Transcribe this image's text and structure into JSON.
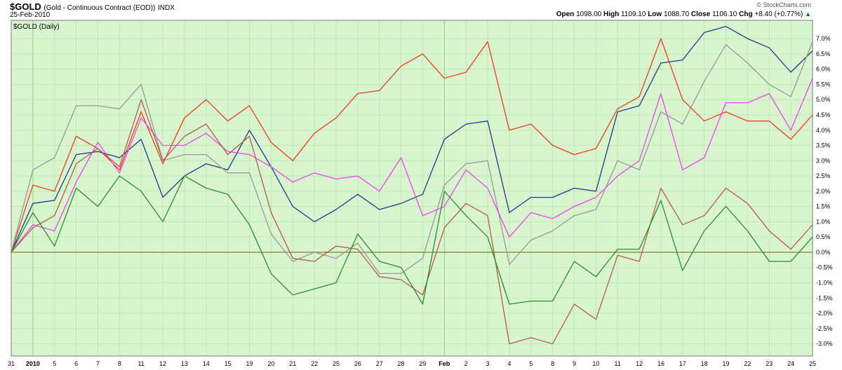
{
  "header": {
    "symbol": "$GOLD",
    "description": "(Gold - Continuous Contract (EOD))",
    "exchange": "INDX",
    "date": "25-Feb-2010",
    "brand": "© StockCharts.com",
    "open_label": "Open",
    "open": "1098.00",
    "high_label": "High",
    "high": "1109.10",
    "low_label": "Low",
    "low": "1088.70",
    "close_label": "Close",
    "close": "1106.10",
    "chg_label": "Chg",
    "chg": "+8.40 (+0.77%)",
    "chg_arrow_icon": "up-triangle-icon"
  },
  "chart_data": {
    "type": "line",
    "panel_label": "$GOLD (Daily)",
    "background": "#d8f5d0",
    "x": [
      "31",
      "2010",
      "5",
      "6",
      "7",
      "8",
      "11",
      "12",
      "13",
      "14",
      "15",
      "19",
      "20",
      "21",
      "22",
      "25",
      "26",
      "27",
      "28",
      "29",
      "Feb",
      "2",
      "3",
      "4",
      "5",
      "8",
      "9",
      "10",
      "11",
      "12",
      "16",
      "17",
      "18",
      "19",
      "22",
      "23",
      "24",
      "25"
    ],
    "bold_ticks": [
      "2010",
      "Feb"
    ],
    "ylim": [
      -3.4,
      7.6
    ],
    "yticks": [
      -3.0,
      -2.5,
      -2.0,
      -1.5,
      -1.0,
      -0.5,
      0.0,
      0.5,
      1.0,
      1.5,
      2.0,
      2.5,
      3.0,
      3.5,
      4.0,
      4.5,
      5.0,
      5.5,
      6.0,
      6.5,
      7.0
    ],
    "y_unit": "%",
    "zero_line_color": "#8a8a3a",
    "grid": true,
    "series": [
      {
        "color": "#e8401a",
        "values": [
          0,
          2.2,
          2.0,
          3.8,
          3.4,
          2.7,
          4.6,
          2.9,
          4.4,
          5.0,
          4.3,
          4.8,
          3.6,
          3.0,
          3.9,
          4.4,
          5.2,
          5.3,
          6.1,
          6.5,
          5.7,
          5.9,
          6.9,
          4.0,
          4.2,
          3.5,
          3.2,
          3.4,
          4.7,
          5.1,
          7.0,
          5.0,
          4.3,
          4.6,
          4.3,
          4.3,
          3.7,
          4.5
        ]
      },
      {
        "color": "#1e3a8a",
        "values": [
          0,
          1.6,
          1.7,
          3.2,
          3.3,
          3.1,
          3.7,
          1.8,
          2.5,
          2.9,
          2.7,
          4.0,
          2.8,
          1.5,
          1.0,
          1.4,
          1.9,
          1.4,
          1.6,
          1.9,
          3.7,
          4.2,
          4.3,
          1.3,
          1.8,
          1.8,
          2.1,
          2.0,
          4.6,
          4.8,
          6.2,
          6.3,
          7.2,
          7.4,
          7.0,
          6.7,
          5.9,
          6.6
        ]
      },
      {
        "color": "#999999",
        "values": [
          0,
          2.7,
          3.1,
          4.8,
          4.8,
          4.7,
          5.5,
          3.0,
          3.2,
          3.2,
          2.6,
          2.6,
          0.6,
          -0.3,
          0.0,
          -0.2,
          0.3,
          -0.7,
          -0.7,
          -0.2,
          2.2,
          2.9,
          3.0,
          -0.4,
          0.4,
          0.7,
          1.2,
          1.4,
          3.0,
          2.7,
          4.6,
          4.2,
          5.6,
          6.8,
          6.2,
          5.5,
          5.1,
          6.9
        ]
      },
      {
        "color": "#ee44ee",
        "values": [
          0,
          0.9,
          0.7,
          2.3,
          3.6,
          2.6,
          4.4,
          3.5,
          3.5,
          3.9,
          3.3,
          3.2,
          2.8,
          2.3,
          2.6,
          2.4,
          2.5,
          2.0,
          3.1,
          1.2,
          1.5,
          2.7,
          2.1,
          0.5,
          1.3,
          1.1,
          1.5,
          1.8,
          2.5,
          3.0,
          5.2,
          2.7,
          3.1,
          4.9,
          4.9,
          5.2,
          4.0,
          5.7
        ]
      },
      {
        "color": "#b85a4a",
        "values": [
          0,
          0.8,
          1.2,
          2.9,
          3.4,
          2.8,
          5.0,
          3.0,
          3.8,
          4.2,
          3.2,
          3.8,
          1.3,
          -0.2,
          -0.3,
          0.2,
          0.1,
          -0.8,
          -0.9,
          -1.4,
          0.8,
          1.6,
          1.2,
          -3.0,
          -2.8,
          -3.0,
          -1.7,
          -2.2,
          -0.1,
          -0.3,
          2.1,
          0.9,
          1.2,
          2.1,
          1.6,
          0.7,
          0.1,
          0.9
        ]
      },
      {
        "color": "#2e8b2e",
        "values": [
          0,
          1.3,
          0.2,
          2.1,
          1.5,
          2.5,
          2.0,
          1.0,
          2.5,
          2.1,
          1.9,
          0.9,
          -0.7,
          -1.4,
          -1.2,
          -1.0,
          0.6,
          -0.3,
          -0.5,
          -1.7,
          2.0,
          1.2,
          0.5,
          -1.7,
          -1.6,
          -1.6,
          -0.3,
          -0.8,
          0.1,
          0.1,
          1.7,
          -0.6,
          0.7,
          1.5,
          0.7,
          -0.3,
          -0.3,
          0.5
        ]
      }
    ]
  }
}
